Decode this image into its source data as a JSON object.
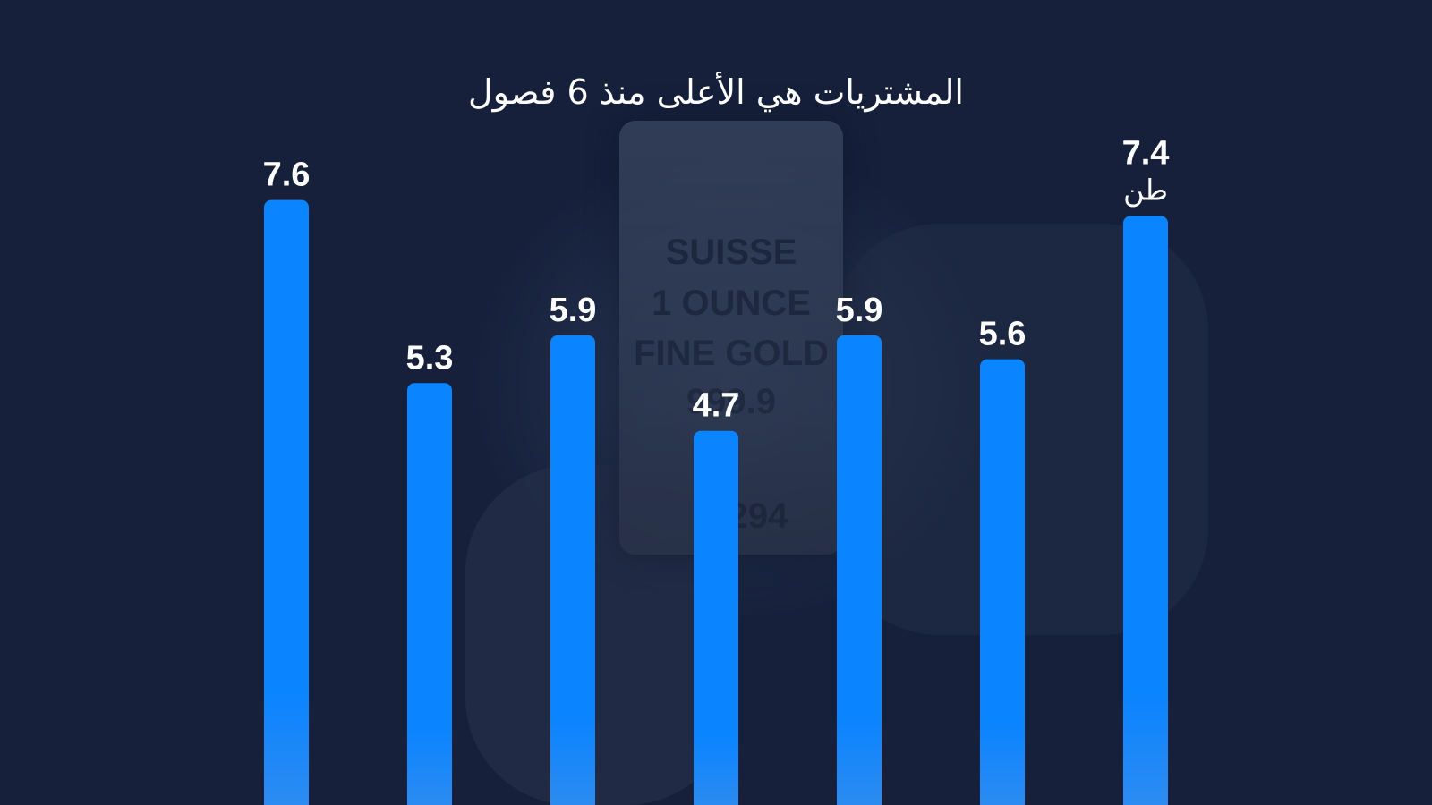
{
  "title": "",
  "subtitle": "المشتريات هي الأعلى منذ 6 فصول",
  "background_photo": {
    "line1": "SUISSE",
    "line2": "1 OUNCE",
    "line3": "FINE GOLD",
    "line4": "999.9",
    "serial": "294"
  },
  "colors": {
    "background": "#16203b",
    "bar": "#0a84ff",
    "label": "#ffffff"
  },
  "chart_data": {
    "type": "bar",
    "categories": [
      "",
      "",
      "",
      "",
      "",
      "",
      ""
    ],
    "values": [
      7.6,
      5.3,
      5.9,
      4.7,
      5.9,
      5.6,
      7.4
    ],
    "value_labels": [
      "7.6",
      "5.3",
      "5.9",
      "4.7",
      "5.9",
      "5.6",
      "7.4"
    ],
    "unit": "طن",
    "xlabel": "",
    "ylabel": "",
    "grid": false,
    "legend": "none"
  }
}
